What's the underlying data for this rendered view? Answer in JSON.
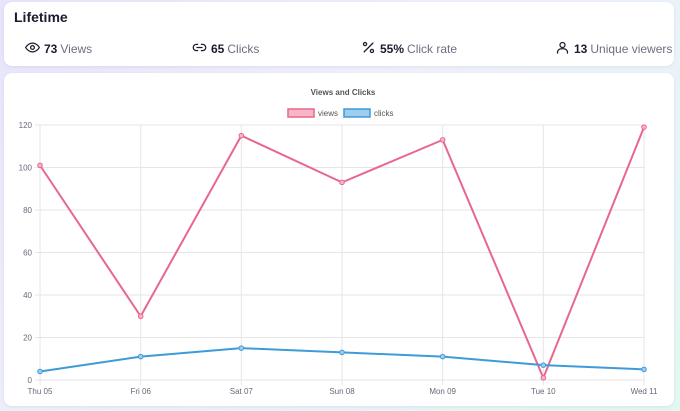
{
  "stats": {
    "title": "Lifetime",
    "items": [
      {
        "value": "73",
        "label": "Views",
        "icon": "eye-icon"
      },
      {
        "value": "65",
        "label": "Clicks",
        "icon": "link-icon"
      },
      {
        "value": "55%",
        "label": "Click rate",
        "icon": "percent-icon"
      },
      {
        "value": "13",
        "label": "Unique viewers",
        "icon": "user-icon"
      }
    ]
  },
  "chart_data": {
    "type": "line",
    "title": "Views and Clicks",
    "categories": [
      "Thu 05",
      "Fri 06",
      "Sat 07",
      "Sun 08",
      "Mon 09",
      "Tue 10",
      "Wed 11"
    ],
    "series": [
      {
        "name": "views",
        "values": [
          101,
          30,
          115,
          93,
          113,
          1,
          119
        ],
        "color": "#e8678c",
        "fill": "#f7b6c7"
      },
      {
        "name": "clicks",
        "values": [
          4,
          11,
          15,
          13,
          11,
          7,
          5
        ],
        "color": "#3d9bd8",
        "fill": "#9fcdf0"
      }
    ],
    "ylim": [
      0,
      120
    ],
    "yticks": [
      0,
      20,
      40,
      60,
      80,
      100,
      120
    ],
    "grid": true,
    "legend": "top"
  }
}
